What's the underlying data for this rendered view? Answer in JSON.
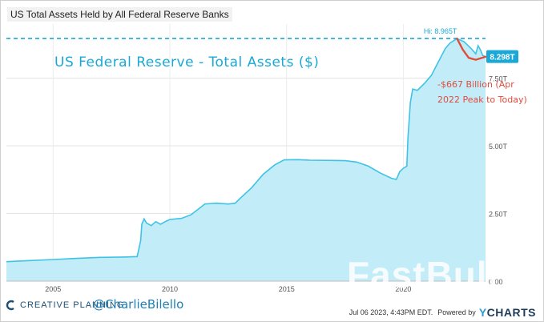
{
  "title": "US Total Assets Held by All Federal Reserve Banks",
  "annotation_title": "US Federal Reserve - Total Assets ($)",
  "hi_label": "Hi: 8.965T",
  "last_label": "8.298T",
  "callout": [
    "-$667 Billion (Apr",
    "2022 Peak to Today)"
  ],
  "footer": {
    "brand": "CREATIVE PLANNING",
    "handle": "@CharlieBilello",
    "timestamp": "Jul 06 2023, 4:43PM EDT.",
    "powered_by": "Powered by",
    "ycharts_y": "Y",
    "ycharts_rest": "CHARTS"
  },
  "watermark": "FastBull",
  "colors": {
    "line": "#3ec3e6",
    "fill": "#c2ecf8",
    "accent": "#1aa9d6",
    "callout": "#e04c3c"
  },
  "chart_data": {
    "type": "area",
    "title": "US Total Assets Held by All Federal Reserve Banks",
    "xlabel": "",
    "ylabel": "",
    "x_ticks": [
      "2005",
      "2010",
      "2015",
      "2020"
    ],
    "y_ticks": [
      "0.00",
      "2.50T",
      "5.00T",
      "7.50T"
    ],
    "ylim": [
      0,
      9.5
    ],
    "xlim": [
      2003.0,
      2023.52
    ],
    "grid": true,
    "series": [
      {
        "points": [
          [
            2003.0,
            0.72
          ],
          [
            2004.0,
            0.76
          ],
          [
            2005.0,
            0.8
          ],
          [
            2006.0,
            0.84
          ],
          [
            2007.0,
            0.88
          ],
          [
            2008.0,
            0.89
          ],
          [
            2008.6,
            0.91
          ],
          [
            2008.75,
            1.5
          ],
          [
            2008.8,
            2.1
          ],
          [
            2008.9,
            2.3
          ],
          [
            2009.0,
            2.15
          ],
          [
            2009.2,
            2.05
          ],
          [
            2009.4,
            2.2
          ],
          [
            2009.6,
            2.1
          ],
          [
            2009.8,
            2.2
          ],
          [
            2010.0,
            2.28
          ],
          [
            2010.5,
            2.32
          ],
          [
            2010.9,
            2.45
          ],
          [
            2011.2,
            2.65
          ],
          [
            2011.5,
            2.85
          ],
          [
            2011.8,
            2.87
          ],
          [
            2012.0,
            2.88
          ],
          [
            2012.5,
            2.85
          ],
          [
            2012.8,
            2.88
          ],
          [
            2013.0,
            3.05
          ],
          [
            2013.5,
            3.45
          ],
          [
            2014.0,
            3.95
          ],
          [
            2014.5,
            4.3
          ],
          [
            2014.9,
            4.48
          ],
          [
            2015.5,
            4.49
          ],
          [
            2016.0,
            4.47
          ],
          [
            2017.0,
            4.46
          ],
          [
            2017.5,
            4.45
          ],
          [
            2018.0,
            4.4
          ],
          [
            2018.5,
            4.25
          ],
          [
            2019.0,
            4.0
          ],
          [
            2019.5,
            3.8
          ],
          [
            2019.7,
            3.76
          ],
          [
            2019.85,
            4.05
          ],
          [
            2020.0,
            4.17
          ],
          [
            2020.15,
            4.25
          ],
          [
            2020.2,
            5.3
          ],
          [
            2020.3,
            6.6
          ],
          [
            2020.4,
            7.1
          ],
          [
            2020.6,
            7.05
          ],
          [
            2020.9,
            7.3
          ],
          [
            2021.2,
            7.6
          ],
          [
            2021.5,
            8.1
          ],
          [
            2021.8,
            8.6
          ],
          [
            2022.0,
            8.8
          ],
          [
            2022.3,
            8.965
          ],
          [
            2022.6,
            8.85
          ],
          [
            2022.9,
            8.6
          ],
          [
            2023.1,
            8.4
          ],
          [
            2023.2,
            8.7
          ],
          [
            2023.3,
            8.55
          ],
          [
            2023.4,
            8.34
          ],
          [
            2023.52,
            8.298
          ]
        ]
      }
    ]
  }
}
